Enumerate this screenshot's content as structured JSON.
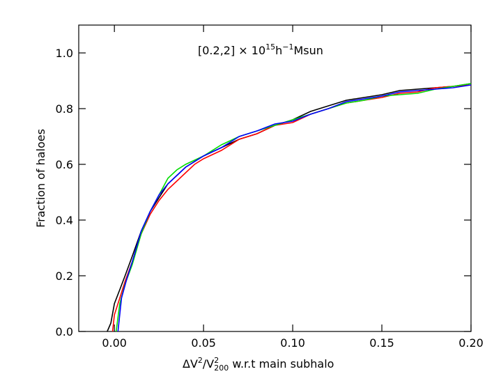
{
  "chart_data": {
    "type": "line",
    "annotation": [
      "[0.2,2] × 10",
      "15",
      "h",
      "−1",
      "Msun"
    ],
    "y_label": "Fraction of haloes",
    "x_label": [
      "ΔV",
      "2",
      "/V",
      "2",
      "200",
      " w.r.t main subhalo"
    ],
    "xlim": [
      -0.02,
      0.2
    ],
    "xticks": [
      {
        "value": 0,
        "label": "0.00"
      },
      0.05,
      {
        "value": 0.1,
        "label": "0.10"
      },
      0.15,
      {
        "value": 0.2,
        "label": "0.20"
      }
    ],
    "ylim": [
      0,
      1.1
    ],
    "yticks": [
      {
        "value": 0,
        "label": "0.0"
      },
      0.2,
      0.4,
      0.6,
      0.8,
      {
        "value": 1,
        "label": "1.0"
      }
    ],
    "series": [
      {
        "color": "#000000",
        "x": [
          -0.004,
          -0.002,
          0,
          0.003,
          0.006,
          0.01,
          0.015,
          0.02,
          0.025,
          0.03,
          0.035,
          0.04,
          0.05,
          0.06,
          0.07,
          0.08,
          0.09,
          0.1,
          0.11,
          0.12,
          0.13,
          0.14,
          0.15,
          0.16,
          0.17,
          0.18,
          0.19,
          0.2
        ],
        "values": [
          0,
          0.03,
          0.1,
          0.15,
          0.2,
          0.27,
          0.36,
          0.43,
          0.48,
          0.53,
          0.56,
          0.59,
          0.63,
          0.66,
          0.69,
          0.71,
          0.74,
          0.76,
          0.79,
          0.81,
          0.83,
          0.84,
          0.85,
          0.865,
          0.87,
          0.875,
          0.88,
          0.89
        ]
      },
      {
        "color": "#ff0000",
        "x": [
          -0.001,
          0,
          0.003,
          0.006,
          0.01,
          0.015,
          0.02,
          0.025,
          0.03,
          0.035,
          0.04,
          0.045,
          0.05,
          0.06,
          0.07,
          0.08,
          0.09,
          0.1,
          0.11,
          0.12,
          0.13,
          0.14,
          0.15,
          0.16,
          0.17,
          0.18,
          0.19,
          0.2
        ],
        "values": [
          0,
          0.06,
          0.12,
          0.18,
          0.25,
          0.35,
          0.42,
          0.47,
          0.51,
          0.54,
          0.57,
          0.6,
          0.62,
          0.65,
          0.69,
          0.71,
          0.74,
          0.75,
          0.78,
          0.8,
          0.82,
          0.83,
          0.84,
          0.855,
          0.86,
          0.875,
          0.88,
          0.885
        ]
      },
      {
        "color": "#00dd00",
        "x": [
          0.001,
          0.003,
          0.006,
          0.01,
          0.015,
          0.02,
          0.025,
          0.03,
          0.035,
          0.04,
          0.05,
          0.06,
          0.07,
          0.08,
          0.09,
          0.1,
          0.11,
          0.12,
          0.13,
          0.14,
          0.15,
          0.16,
          0.17,
          0.18,
          0.19,
          0.2
        ],
        "values": [
          0,
          0.1,
          0.17,
          0.24,
          0.35,
          0.43,
          0.49,
          0.55,
          0.58,
          0.6,
          0.63,
          0.67,
          0.7,
          0.72,
          0.74,
          0.76,
          0.78,
          0.8,
          0.82,
          0.83,
          0.845,
          0.85,
          0.855,
          0.87,
          0.88,
          0.89
        ]
      },
      {
        "color": "#0000ff",
        "x": [
          0.002,
          0.004,
          0.007,
          0.01,
          0.015,
          0.02,
          0.025,
          0.03,
          0.035,
          0.04,
          0.05,
          0.06,
          0.07,
          0.08,
          0.09,
          0.1,
          0.11,
          0.12,
          0.13,
          0.14,
          0.15,
          0.16,
          0.17,
          0.18,
          0.19,
          0.2
        ],
        "values": [
          0,
          0.12,
          0.19,
          0.25,
          0.36,
          0.43,
          0.49,
          0.53,
          0.56,
          0.59,
          0.63,
          0.66,
          0.7,
          0.72,
          0.745,
          0.755,
          0.78,
          0.8,
          0.825,
          0.835,
          0.845,
          0.86,
          0.865,
          0.87,
          0.875,
          0.885
        ]
      }
    ]
  }
}
